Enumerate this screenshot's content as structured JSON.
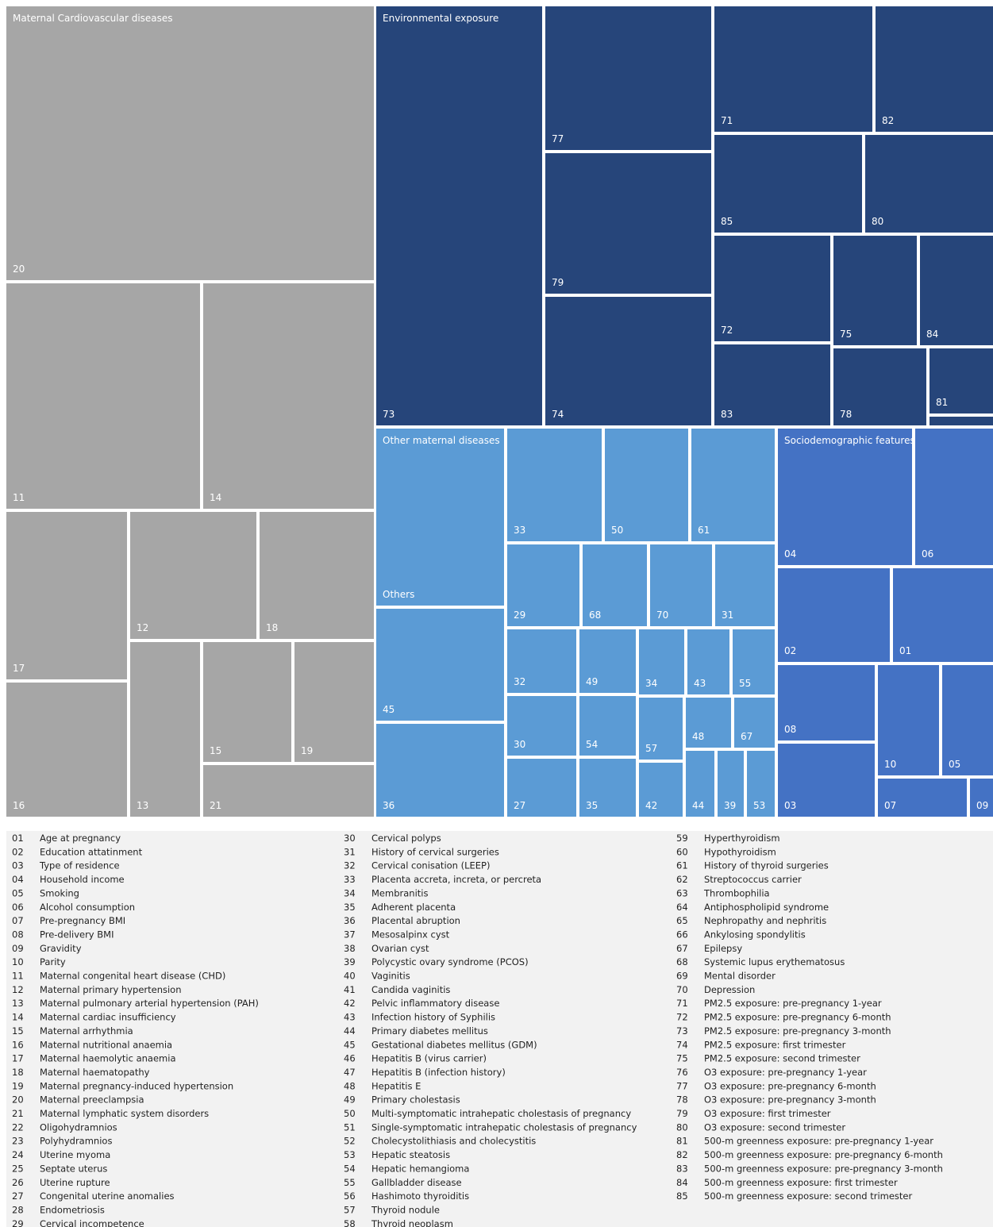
{
  "groups": [
    {
      "name": "Maternal Cardiovascular diseases",
      "color": "#a6a6a6",
      "tiles": [
        "20",
        "11",
        "14",
        "17",
        "16",
        "12",
        "18",
        "13",
        "15",
        "19",
        "21"
      ]
    },
    {
      "name": "Environmental exposure",
      "color": "#26457a",
      "tiles": [
        "73",
        "77",
        "79",
        "74",
        "71",
        "82",
        "85",
        "80",
        "72",
        "75",
        "84",
        "83",
        "78",
        "81",
        null
      ]
    },
    {
      "name": "Other maternal diseases",
      "color": "#5b9bd5",
      "tiles": [
        "Others",
        "45",
        "36",
        "33",
        "50",
        "61",
        "29",
        "68",
        "70",
        "31",
        "32",
        "49",
        "34",
        "43",
        "55",
        "30",
        "54",
        "57",
        "48",
        "67",
        "27",
        "35",
        "42",
        "44",
        "39",
        "53"
      ]
    },
    {
      "name": "Sociodemographic features",
      "color": "#4472c4",
      "tiles": [
        "04",
        "06",
        "02",
        "01",
        "08",
        "03",
        "10",
        "05",
        "07",
        "09"
      ]
    }
  ],
  "legend": [
    {
      "code": "01",
      "text": "Age at pregnancy"
    },
    {
      "code": "02",
      "text": "Education attatinment"
    },
    {
      "code": "03",
      "text": "Type of residence"
    },
    {
      "code": "04",
      "text": "Household income"
    },
    {
      "code": "05",
      "text": "Smoking"
    },
    {
      "code": "06",
      "text": "Alcohol consumption"
    },
    {
      "code": "07",
      "text": "Pre-pregnancy BMI"
    },
    {
      "code": "08",
      "text": "Pre-delivery BMI"
    },
    {
      "code": "09",
      "text": "Gravidity"
    },
    {
      "code": "10",
      "text": "Parity"
    },
    {
      "code": "11",
      "text": "Maternal congenital heart disease (CHD)"
    },
    {
      "code": "12",
      "text": "Maternal primary hypertension"
    },
    {
      "code": "13",
      "text": "Maternal pulmonary arterial hypertension (PAH)"
    },
    {
      "code": "14",
      "text": "Maternal cardiac insufficiency"
    },
    {
      "code": "15",
      "text": "Maternal arrhythmia"
    },
    {
      "code": "16",
      "text": "Maternal nutritional anaemia"
    },
    {
      "code": "17",
      "text": "Maternal haemolytic anaemia"
    },
    {
      "code": "18",
      "text": "Maternal haematopathy"
    },
    {
      "code": "19",
      "text": "Maternal pregnancy-induced hypertension"
    },
    {
      "code": "20",
      "text": "Maternal preeclampsia"
    },
    {
      "code": "21",
      "text": "Maternal lymphatic system disorders"
    },
    {
      "code": "22",
      "text": "Oligohydramnios"
    },
    {
      "code": "23",
      "text": "Polyhydramnios"
    },
    {
      "code": "24",
      "text": "Uterine myoma"
    },
    {
      "code": "25",
      "text": "Septate uterus"
    },
    {
      "code": "26",
      "text": "Uterine rupture"
    },
    {
      "code": "27",
      "text": "Congenital uterine anomalies"
    },
    {
      "code": "28",
      "text": "Endometriosis"
    },
    {
      "code": "29",
      "text": "Cervical incompetence"
    },
    {
      "code": "30",
      "text": "Cervical polyps"
    },
    {
      "code": "31",
      "text": "History of cervical surgeries"
    },
    {
      "code": "32",
      "text": "Cervical conisation (LEEP)"
    },
    {
      "code": "33",
      "text": "Placenta accreta, increta, or percreta"
    },
    {
      "code": "34",
      "text": "Membranitis"
    },
    {
      "code": "35",
      "text": "Adherent placenta"
    },
    {
      "code": "36",
      "text": "Placental abruption"
    },
    {
      "code": "37",
      "text": "Mesosalpinx cyst"
    },
    {
      "code": "38",
      "text": "Ovarian cyst"
    },
    {
      "code": "39",
      "text": "Polycystic ovary syndrome (PCOS)"
    },
    {
      "code": "40",
      "text": "Vaginitis"
    },
    {
      "code": "41",
      "text": "Candida vaginitis"
    },
    {
      "code": "42",
      "text": "Pelvic inflammatory disease"
    },
    {
      "code": "43",
      "text": "Infection history of Syphilis"
    },
    {
      "code": "44",
      "text": "Primary diabetes mellitus"
    },
    {
      "code": "45",
      "text": "Gestational diabetes mellitus (GDM)"
    },
    {
      "code": "46",
      "text": "Hepatitis B (virus carrier)"
    },
    {
      "code": "47",
      "text": "Hepatitis B (infection history)"
    },
    {
      "code": "48",
      "text": "Hepatitis E"
    },
    {
      "code": "49",
      "text": "Primary cholestasis"
    },
    {
      "code": "50",
      "text": "Multi-symptomatic intrahepatic cholestasis of pregnancy"
    },
    {
      "code": "51",
      "text": "Single-symptomatic intrahepatic cholestasis of pregnancy"
    },
    {
      "code": "52",
      "text": "Cholecystolithiasis and cholecystitis"
    },
    {
      "code": "53",
      "text": "Hepatic steatosis"
    },
    {
      "code": "54",
      "text": "Hepatic hemangioma"
    },
    {
      "code": "55",
      "text": "Gallbladder disease"
    },
    {
      "code": "56",
      "text": "Hashimoto thyroiditis"
    },
    {
      "code": "57",
      "text": "Thyroid nodule"
    },
    {
      "code": "58",
      "text": "Thyroid neoplasm"
    },
    {
      "code": "59",
      "text": "Hyperthyroidism"
    },
    {
      "code": "60",
      "text": "Hypothyroidism"
    },
    {
      "code": "61",
      "text": "History of thyroid surgeries"
    },
    {
      "code": "62",
      "text": "Streptococcus carrier"
    },
    {
      "code": "63",
      "text": "Thrombophilia"
    },
    {
      "code": "64",
      "text": "Antiphospholipid syndrome"
    },
    {
      "code": "65",
      "text": "Nephropathy and nephritis"
    },
    {
      "code": "66",
      "text": "Ankylosing spondylitis"
    },
    {
      "code": "67",
      "text": "Epilepsy"
    },
    {
      "code": "68",
      "text": "Systemic lupus erythematosus"
    },
    {
      "code": "69",
      "text": "Mental disorder"
    },
    {
      "code": "70",
      "text": "Depression"
    },
    {
      "code": "71",
      "text": "PM2.5 exposure: pre-pregnancy 1-year"
    },
    {
      "code": "72",
      "text": "PM2.5 exposure: pre-pregnancy 6-month"
    },
    {
      "code": "73",
      "text": "PM2.5 exposure: pre-pregnancy 3-month"
    },
    {
      "code": "74",
      "text": "PM2.5 exposure: first trimester"
    },
    {
      "code": "75",
      "text": "PM2.5 exposure: second trimester"
    },
    {
      "code": "76",
      "text": "O3 exposure: pre-pregnancy 1-year"
    },
    {
      "code": "77",
      "text": "O3 exposure: pre-pregnancy 6-month"
    },
    {
      "code": "78",
      "text": "O3 exposure: pre-pregnancy 3-month"
    },
    {
      "code": "79",
      "text": "O3 exposure: first trimester"
    },
    {
      "code": "80",
      "text": "O3 exposure: second trimester"
    },
    {
      "code": "81",
      "text": "500-m greenness exposure: pre-pregnancy 1-year"
    },
    {
      "code": "82",
      "text": "500-m greenness exposure: pre-pregnancy 6-month"
    },
    {
      "code": "83",
      "text": "500-m greenness exposure: pre-pregnancy 3-month"
    },
    {
      "code": "84",
      "text": "500-m greenness exposure: first trimester"
    },
    {
      "code": "85",
      "text": "500-m greenness exposure: second trimester"
    }
  ]
}
